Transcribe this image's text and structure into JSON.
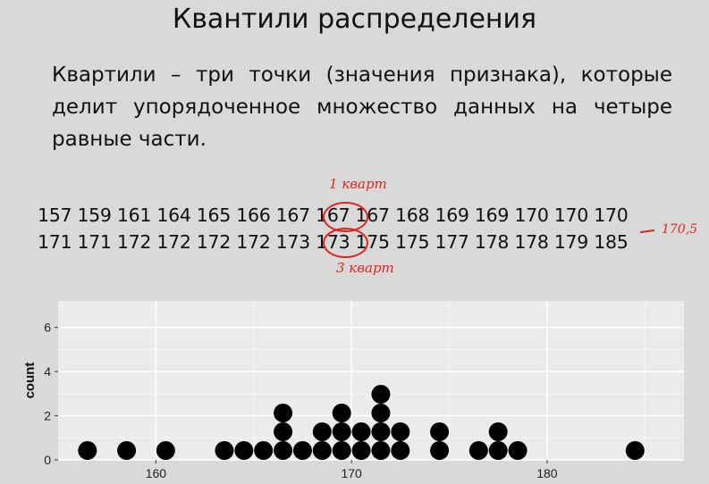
{
  "slide": {
    "title": "Квантили распределения",
    "paragraph": "Квартили – три точки (значения признака), которые делит упорядоченное множество данных на четыре равные части."
  },
  "data_rows": {
    "row1": "157 159 161 164 165 166 167 167 167 168 169 169 170 170 170",
    "row2": "171 171 172 172 172 172 173 173 175 175 177 178 178 179 185"
  },
  "annotations": {
    "q1_note": "1 кварт",
    "q3_note": "3 кварт",
    "median_note": "170,5"
  },
  "chart_data": {
    "type": "dotplot",
    "xlabel": "",
    "ylabel": "count",
    "x_ticks": [
      160,
      170,
      180
    ],
    "y_ticks": [
      0,
      2,
      4,
      6
    ],
    "xlim": [
      155,
      187
    ],
    "ylim": [
      0,
      7.2
    ],
    "points": [
      {
        "x": 156.5,
        "count": 1
      },
      {
        "x": 158.5,
        "count": 1
      },
      {
        "x": 160.5,
        "count": 1
      },
      {
        "x": 163.5,
        "count": 1
      },
      {
        "x": 164.5,
        "count": 1
      },
      {
        "x": 165.5,
        "count": 1
      },
      {
        "x": 166.5,
        "count": 3
      },
      {
        "x": 167.5,
        "count": 1
      },
      {
        "x": 168.5,
        "count": 2
      },
      {
        "x": 169.5,
        "count": 3
      },
      {
        "x": 170.5,
        "count": 2
      },
      {
        "x": 171.5,
        "count": 4
      },
      {
        "x": 172.5,
        "count": 2
      },
      {
        "x": 174.5,
        "count": 2
      },
      {
        "x": 176.5,
        "count": 1
      },
      {
        "x": 177.5,
        "count": 2
      },
      {
        "x": 178.5,
        "count": 1
      },
      {
        "x": 184.5,
        "count": 1
      }
    ],
    "colors": {
      "background": "#d9d9d9",
      "panel": "#ebebeb",
      "grid": "#ffffff",
      "dot": "#000000"
    },
    "grid": true
  }
}
